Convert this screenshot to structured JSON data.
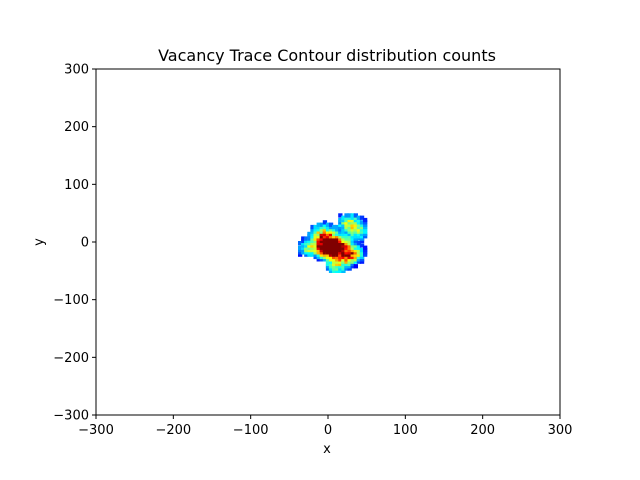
{
  "chart_data": {
    "type": "heatmap",
    "title": "Vacancy Trace Contour distribution counts",
    "xlabel": "x",
    "ylabel": "y",
    "xlim": [
      -300,
      300
    ],
    "ylim": [
      -300,
      300
    ],
    "xticks": [
      -300,
      -200,
      -100,
      0,
      100,
      200,
      300
    ],
    "yticks": [
      -300,
      -200,
      -100,
      0,
      100,
      200,
      300
    ],
    "grid": false,
    "colormap": "jet",
    "density_extent": {
      "x": [
        -40,
        50
      ],
      "y": [
        -50,
        48
      ]
    },
    "density_centers": [
      {
        "x": 8,
        "y": -4,
        "level": 1.0
      },
      {
        "x": 2,
        "y": -8,
        "level": 0.95
      },
      {
        "x": 30,
        "y": -20,
        "level": 0.75
      },
      {
        "x": -8,
        "y": 18,
        "level": 0.55
      },
      {
        "x": 28,
        "y": 36,
        "level": 0.5
      },
      {
        "x": -25,
        "y": -10,
        "level": 0.45
      },
      {
        "x": 40,
        "y": 18,
        "level": 0.4
      },
      {
        "x": 12,
        "y": -40,
        "level": 0.5
      }
    ],
    "colors": {
      "low": "#0000cc",
      "mid": "#00e5ff",
      "high": "#ffdd00",
      "peak": "#8b0000"
    }
  }
}
